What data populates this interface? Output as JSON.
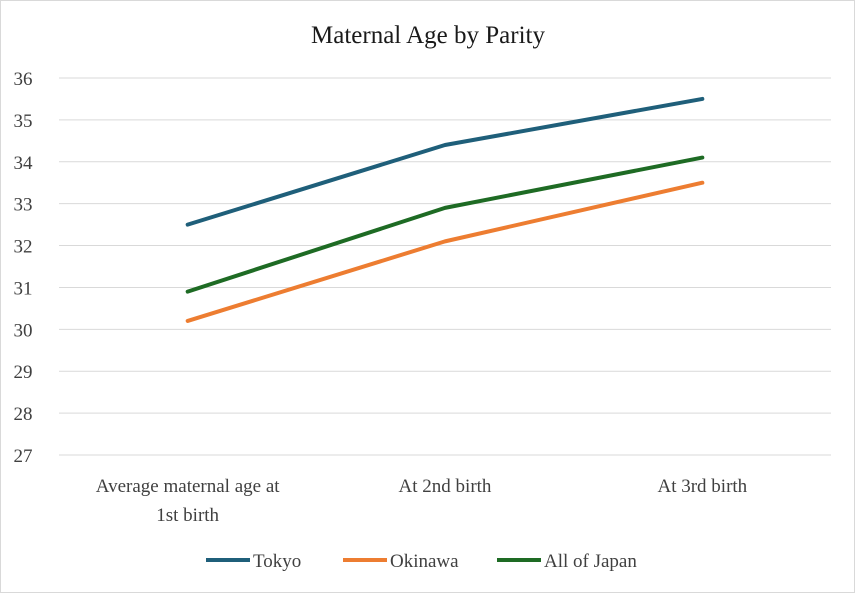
{
  "chart_data": {
    "type": "line",
    "title": "Maternal Age by Parity",
    "xlabel": "",
    "ylabel": "",
    "categories": [
      [
        "Average maternal age at",
        "1st birth"
      ],
      [
        "At 2nd birth"
      ],
      [
        "At 3rd birth"
      ]
    ],
    "ylim": [
      27,
      36
    ],
    "yticks": [
      27,
      28,
      29,
      30,
      31,
      32,
      33,
      34,
      35,
      36
    ],
    "grid": true,
    "legend_position": "bottom",
    "series": [
      {
        "name": "Tokyo",
        "color": "#1f5f7a",
        "values": [
          32.5,
          34.4,
          35.5
        ]
      },
      {
        "name": "Okinawa",
        "color": "#ed7d31",
        "values": [
          30.2,
          32.1,
          33.5
        ]
      },
      {
        "name": "All of Japan",
        "color": "#1e6b24",
        "values": [
          30.9,
          32.9,
          34.1
        ]
      }
    ]
  }
}
